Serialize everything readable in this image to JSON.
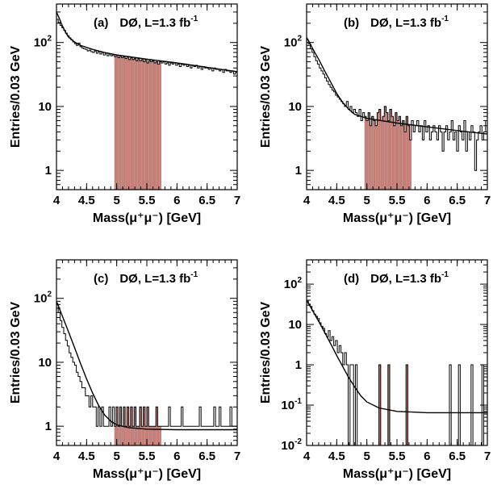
{
  "chart_data": [
    {
      "type": "histogram",
      "panel": "(a)",
      "title": "DØ, L=1.3 fb",
      "title_sup": "-1",
      "xlabel": "Mass(μ⁺μ⁻) [GeV]",
      "ylabel": "Entries/0.03 GeV",
      "xlim": [
        4,
        7
      ],
      "ylim": [
        0.5,
        400
      ],
      "yscale": "log",
      "xticks": [
        "4",
        "4.5",
        "5",
        "5.5",
        "6",
        "6.5",
        "7"
      ],
      "yticks": [
        {
          "v": 1,
          "label": "1"
        },
        {
          "v": 10,
          "label": "10"
        },
        {
          "v": 100,
          "label": "10",
          "sup": "2"
        }
      ],
      "shaded_window": [
        4.96,
        5.74
      ],
      "bin_width": 0.03,
      "hist": [
        230,
        205,
        185,
        170,
        155,
        140,
        128,
        118,
        110,
        102,
        96,
        90,
        98,
        86,
        82,
        80,
        78,
        74,
        76,
        72,
        70,
        74,
        68,
        72,
        66,
        70,
        64,
        68,
        62,
        66,
        62,
        64,
        60,
        64,
        58,
        62,
        58,
        60,
        56,
        60,
        54,
        58,
        54,
        56,
        52,
        56,
        52,
        54,
        50,
        54,
        48,
        52,
        50,
        52,
        48,
        50,
        46,
        50,
        48,
        50,
        46,
        48,
        44,
        48,
        46,
        48,
        44,
        46,
        42,
        46,
        44,
        46,
        42,
        44,
        40,
        44,
        42,
        44,
        40,
        42,
        38,
        42,
        40,
        40,
        38,
        40,
        36,
        40,
        38,
        38,
        36,
        38,
        34,
        38,
        36,
        36,
        34,
        36,
        32,
        34
      ],
      "fit": [
        [
          4,
          300
        ],
        [
          4.05,
          235
        ],
        [
          4.1,
          180
        ],
        [
          4.15,
          145
        ],
        [
          4.2,
          122
        ],
        [
          4.3,
          102
        ],
        [
          4.4,
          90
        ],
        [
          4.6,
          78
        ],
        [
          4.8,
          70
        ],
        [
          5,
          64
        ],
        [
          5.5,
          55
        ],
        [
          6,
          48
        ],
        [
          6.5,
          41
        ],
        [
          7,
          35
        ]
      ]
    },
    {
      "type": "histogram",
      "panel": "(b)",
      "title": "DØ, L=1.3 fb",
      "title_sup": "-1",
      "xlabel": "Mass(μ⁺μ⁻) [GeV]",
      "ylabel": "Entries/0.03 GeV",
      "xlim": [
        4,
        7
      ],
      "ylim": [
        0.5,
        400
      ],
      "yscale": "log",
      "xticks": [
        "4",
        "4.5",
        "5",
        "5.5",
        "6",
        "6.5",
        "7"
      ],
      "yticks": [
        {
          "v": 1,
          "label": "1"
        },
        {
          "v": 10,
          "label": "10"
        },
        {
          "v": 100,
          "label": "10",
          "sup": "2"
        }
      ],
      "shaded_window": [
        4.96,
        5.74
      ],
      "bin_width": 0.03,
      "hist": [
        110,
        95,
        80,
        70,
        60,
        52,
        46,
        40,
        36,
        32,
        28,
        25,
        22,
        20,
        18,
        17,
        15,
        14,
        13,
        12,
        11,
        10,
        12,
        9,
        10,
        8,
        9,
        8,
        7,
        9,
        6,
        8,
        7,
        6,
        8,
        5,
        7,
        6,
        5,
        8,
        9,
        6,
        7,
        10,
        8,
        6,
        9,
        7,
        5,
        8,
        6,
        7,
        5,
        6,
        4,
        7,
        5,
        3,
        6,
        4,
        5,
        6,
        4,
        5,
        3,
        6,
        4,
        5,
        3,
        4,
        5,
        4,
        3,
        5,
        4,
        2,
        4,
        5,
        3,
        4,
        6,
        3,
        4,
        2,
        5,
        4,
        3,
        6,
        2,
        4,
        3,
        5,
        4,
        1,
        3,
        4,
        5,
        3,
        4,
        6
      ],
      "fit": [
        [
          4,
          120
        ],
        [
          4.05,
          100
        ],
        [
          4.1,
          80
        ],
        [
          4.2,
          55
        ],
        [
          4.3,
          36
        ],
        [
          4.4,
          24
        ],
        [
          4.5,
          16
        ],
        [
          4.6,
          11.5
        ],
        [
          4.7,
          9
        ],
        [
          4.8,
          7.5
        ],
        [
          5,
          6.5
        ],
        [
          5.5,
          5.5
        ],
        [
          6,
          4.8
        ],
        [
          6.5,
          4.2
        ],
        [
          7,
          3.7
        ]
      ]
    },
    {
      "type": "histogram",
      "panel": "(c)",
      "title": "DØ, L=1.3 fb",
      "title_sup": "-1",
      "xlabel": "Mass(μ⁺μ⁻) [GeV]",
      "ylabel": "Entries/0.03 GeV",
      "xlim": [
        4,
        7
      ],
      "ylim": [
        0.5,
        400
      ],
      "yscale": "log",
      "xticks": [
        "4",
        "4.5",
        "5",
        "5.5",
        "6",
        "6.5",
        "7"
      ],
      "yticks": [
        {
          "v": 1,
          "label": "1"
        },
        {
          "v": 10,
          "label": "10"
        },
        {
          "v": 100,
          "label": "10",
          "sup": "2"
        }
      ],
      "shaded_window": [
        4.96,
        5.74
      ],
      "bin_width": 0.03,
      "hist": [
        80,
        60,
        45,
        35,
        28,
        22,
        18,
        14,
        12,
        10,
        9,
        7,
        6,
        5,
        4,
        4,
        3,
        3,
        2,
        3,
        2,
        2,
        1,
        2,
        1,
        2,
        1,
        1,
        1,
        2,
        1,
        2,
        1,
        2,
        1,
        2,
        1,
        2,
        1,
        2,
        1,
        2,
        1,
        2,
        1,
        1,
        2,
        1,
        2,
        1,
        2,
        1,
        1,
        1,
        1,
        2,
        1,
        1,
        1,
        1,
        1,
        1,
        2,
        1,
        1,
        1,
        1,
        1,
        1,
        2,
        1,
        1,
        1,
        1,
        1,
        1,
        1,
        1,
        1,
        2,
        1,
        1,
        1,
        1,
        1,
        1,
        1,
        2,
        1,
        1,
        2,
        1,
        1,
        1,
        1,
        1,
        2,
        1,
        1,
        1
      ],
      "fit": [
        [
          4,
          90
        ],
        [
          4.1,
          52
        ],
        [
          4.2,
          30
        ],
        [
          4.3,
          17
        ],
        [
          4.4,
          9.5
        ],
        [
          4.5,
          5.5
        ],
        [
          4.6,
          3.3
        ],
        [
          4.7,
          2.1
        ],
        [
          4.8,
          1.5
        ],
        [
          4.9,
          1.2
        ],
        [
          5,
          1.05
        ],
        [
          5.2,
          0.95
        ],
        [
          5.5,
          0.9
        ],
        [
          6,
          0.88
        ],
        [
          7,
          0.88
        ]
      ]
    },
    {
      "type": "histogram",
      "panel": "(d)",
      "title": "DØ, L=1.3 fb",
      "title_sup": "-1",
      "xlabel": "Mass(μ⁺μ⁻) [GeV]",
      "ylabel": "Entries/0.03 GeV",
      "xlim": [
        4,
        7
      ],
      "ylim": [
        0.01,
        400
      ],
      "yscale": "log",
      "xticks": [
        "4",
        "4.5",
        "5",
        "5.5",
        "6",
        "6.5",
        "7"
      ],
      "yticks": [
        {
          "v": 0.01,
          "label": "10",
          "sup": "-2"
        },
        {
          "v": 0.1,
          "label": "10",
          "sup": "-1"
        },
        {
          "v": 1,
          "label": "1"
        },
        {
          "v": 10,
          "label": "10"
        },
        {
          "v": 100,
          "label": "10",
          "sup": "2"
        }
      ],
      "shaded_window": [
        4.96,
        5.74
      ],
      "bin_width": 0.03,
      "hist": [
        40,
        32,
        28,
        22,
        18,
        16,
        14,
        11,
        9,
        8,
        6,
        5,
        7,
        4,
        5,
        3,
        4,
        2,
        3,
        2,
        1,
        2,
        1,
        0,
        1,
        1,
        0,
        1,
        0,
        0,
        0,
        0,
        0,
        0,
        0,
        0,
        0,
        0,
        0,
        0,
        1,
        0,
        0,
        0,
        0,
        1,
        0,
        0,
        0,
        0,
        0,
        0,
        0,
        0,
        0,
        1,
        0,
        0,
        0,
        0,
        0,
        0,
        0,
        0,
        0,
        0,
        0,
        0,
        0,
        0,
        0,
        0,
        0,
        0,
        0,
        0,
        0,
        0,
        0,
        1,
        0,
        0,
        0,
        0,
        1,
        0,
        0,
        0,
        0,
        0,
        0,
        1,
        0,
        0,
        0,
        0,
        0,
        1,
        0,
        0
      ],
      "fit": [
        [
          4,
          40
        ],
        [
          4.1,
          22
        ],
        [
          4.2,
          12
        ],
        [
          4.3,
          6.3
        ],
        [
          4.4,
          3.3
        ],
        [
          4.5,
          1.7
        ],
        [
          4.6,
          0.9
        ],
        [
          4.7,
          0.48
        ],
        [
          4.8,
          0.28
        ],
        [
          4.9,
          0.17
        ],
        [
          5,
          0.12
        ],
        [
          5.2,
          0.085
        ],
        [
          5.5,
          0.07
        ],
        [
          6,
          0.065
        ],
        [
          7,
          0.065
        ]
      ]
    }
  ]
}
